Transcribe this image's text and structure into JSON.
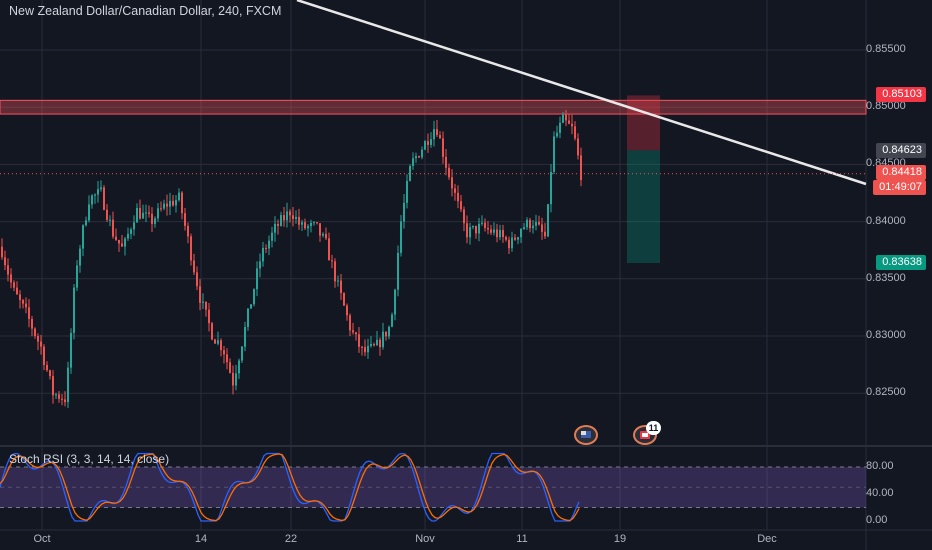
{
  "header": {
    "title": "New Zealand Dollar/Canadian Dollar, 240, FXCM"
  },
  "oscillator": {
    "title": "Stoch RSI (3, 3, 14, 14, close)",
    "ticks": [
      "80.00",
      "40.00",
      "0.00"
    ]
  },
  "price_axis": {
    "ticks": [
      "0.85500",
      "0.85000",
      "0.84500",
      "0.84000",
      "0.83500",
      "0.83000",
      "0.82500"
    ]
  },
  "price_labels": {
    "resistance": "0.85103",
    "entry": "0.84623",
    "current": "0.84418",
    "countdown": "01:49:07",
    "target": "0.83638"
  },
  "time_axis": {
    "ticks": [
      "Oct",
      "14",
      "22",
      "Nov",
      "11",
      "19",
      "Dec"
    ]
  },
  "events": {
    "calendar_count": "11"
  },
  "colors": {
    "background": "#131722",
    "up": "#26a69a",
    "down": "#ef5350",
    "resistance_zone": "#f7525f",
    "stoch_k": "#2962ff",
    "stoch_d": "#ff6d00",
    "osc_band": "#7e57c2"
  },
  "chart_data": {
    "type": "candlestick",
    "price_range": [
      0.8205,
      0.8585
    ],
    "approx_close_path": [
      {
        "x": "Oct",
        "price": 0.8378
      },
      {
        "x": "Oct",
        "price": 0.8245
      },
      {
        "x": "Oct",
        "price": 0.8385
      },
      {
        "x": "Oct",
        "price": 0.8425
      },
      {
        "x": "14",
        "price": 0.8375
      },
      {
        "x": "14",
        "price": 0.842
      },
      {
        "x": "14",
        "price": 0.83
      },
      {
        "x": "14",
        "price": 0.8285
      },
      {
        "x": "22",
        "price": 0.841
      },
      {
        "x": "22",
        "price": 0.838
      },
      {
        "x": "22",
        "price": 0.8285
      },
      {
        "x": "Nov",
        "price": 0.831
      },
      {
        "x": "Nov",
        "price": 0.845
      },
      {
        "x": "Nov",
        "price": 0.8485
      },
      {
        "x": "Nov",
        "price": 0.8385
      },
      {
        "x": "11",
        "price": 0.8375
      },
      {
        "x": "11",
        "price": 0.8485
      },
      {
        "x": "11",
        "price": 0.8442
      }
    ],
    "resistance_zone": [
      0.8494,
      0.8506
    ],
    "trendline": {
      "from": {
        "x": "Oct",
        "price": 0.8595
      },
      "to": {
        "x": "Dec",
        "price": 0.8437
      }
    },
    "position": {
      "entry": 0.84623,
      "stop": 0.85103,
      "target": 0.83638
    },
    "stoch_levels": [
      80,
      20
    ]
  }
}
